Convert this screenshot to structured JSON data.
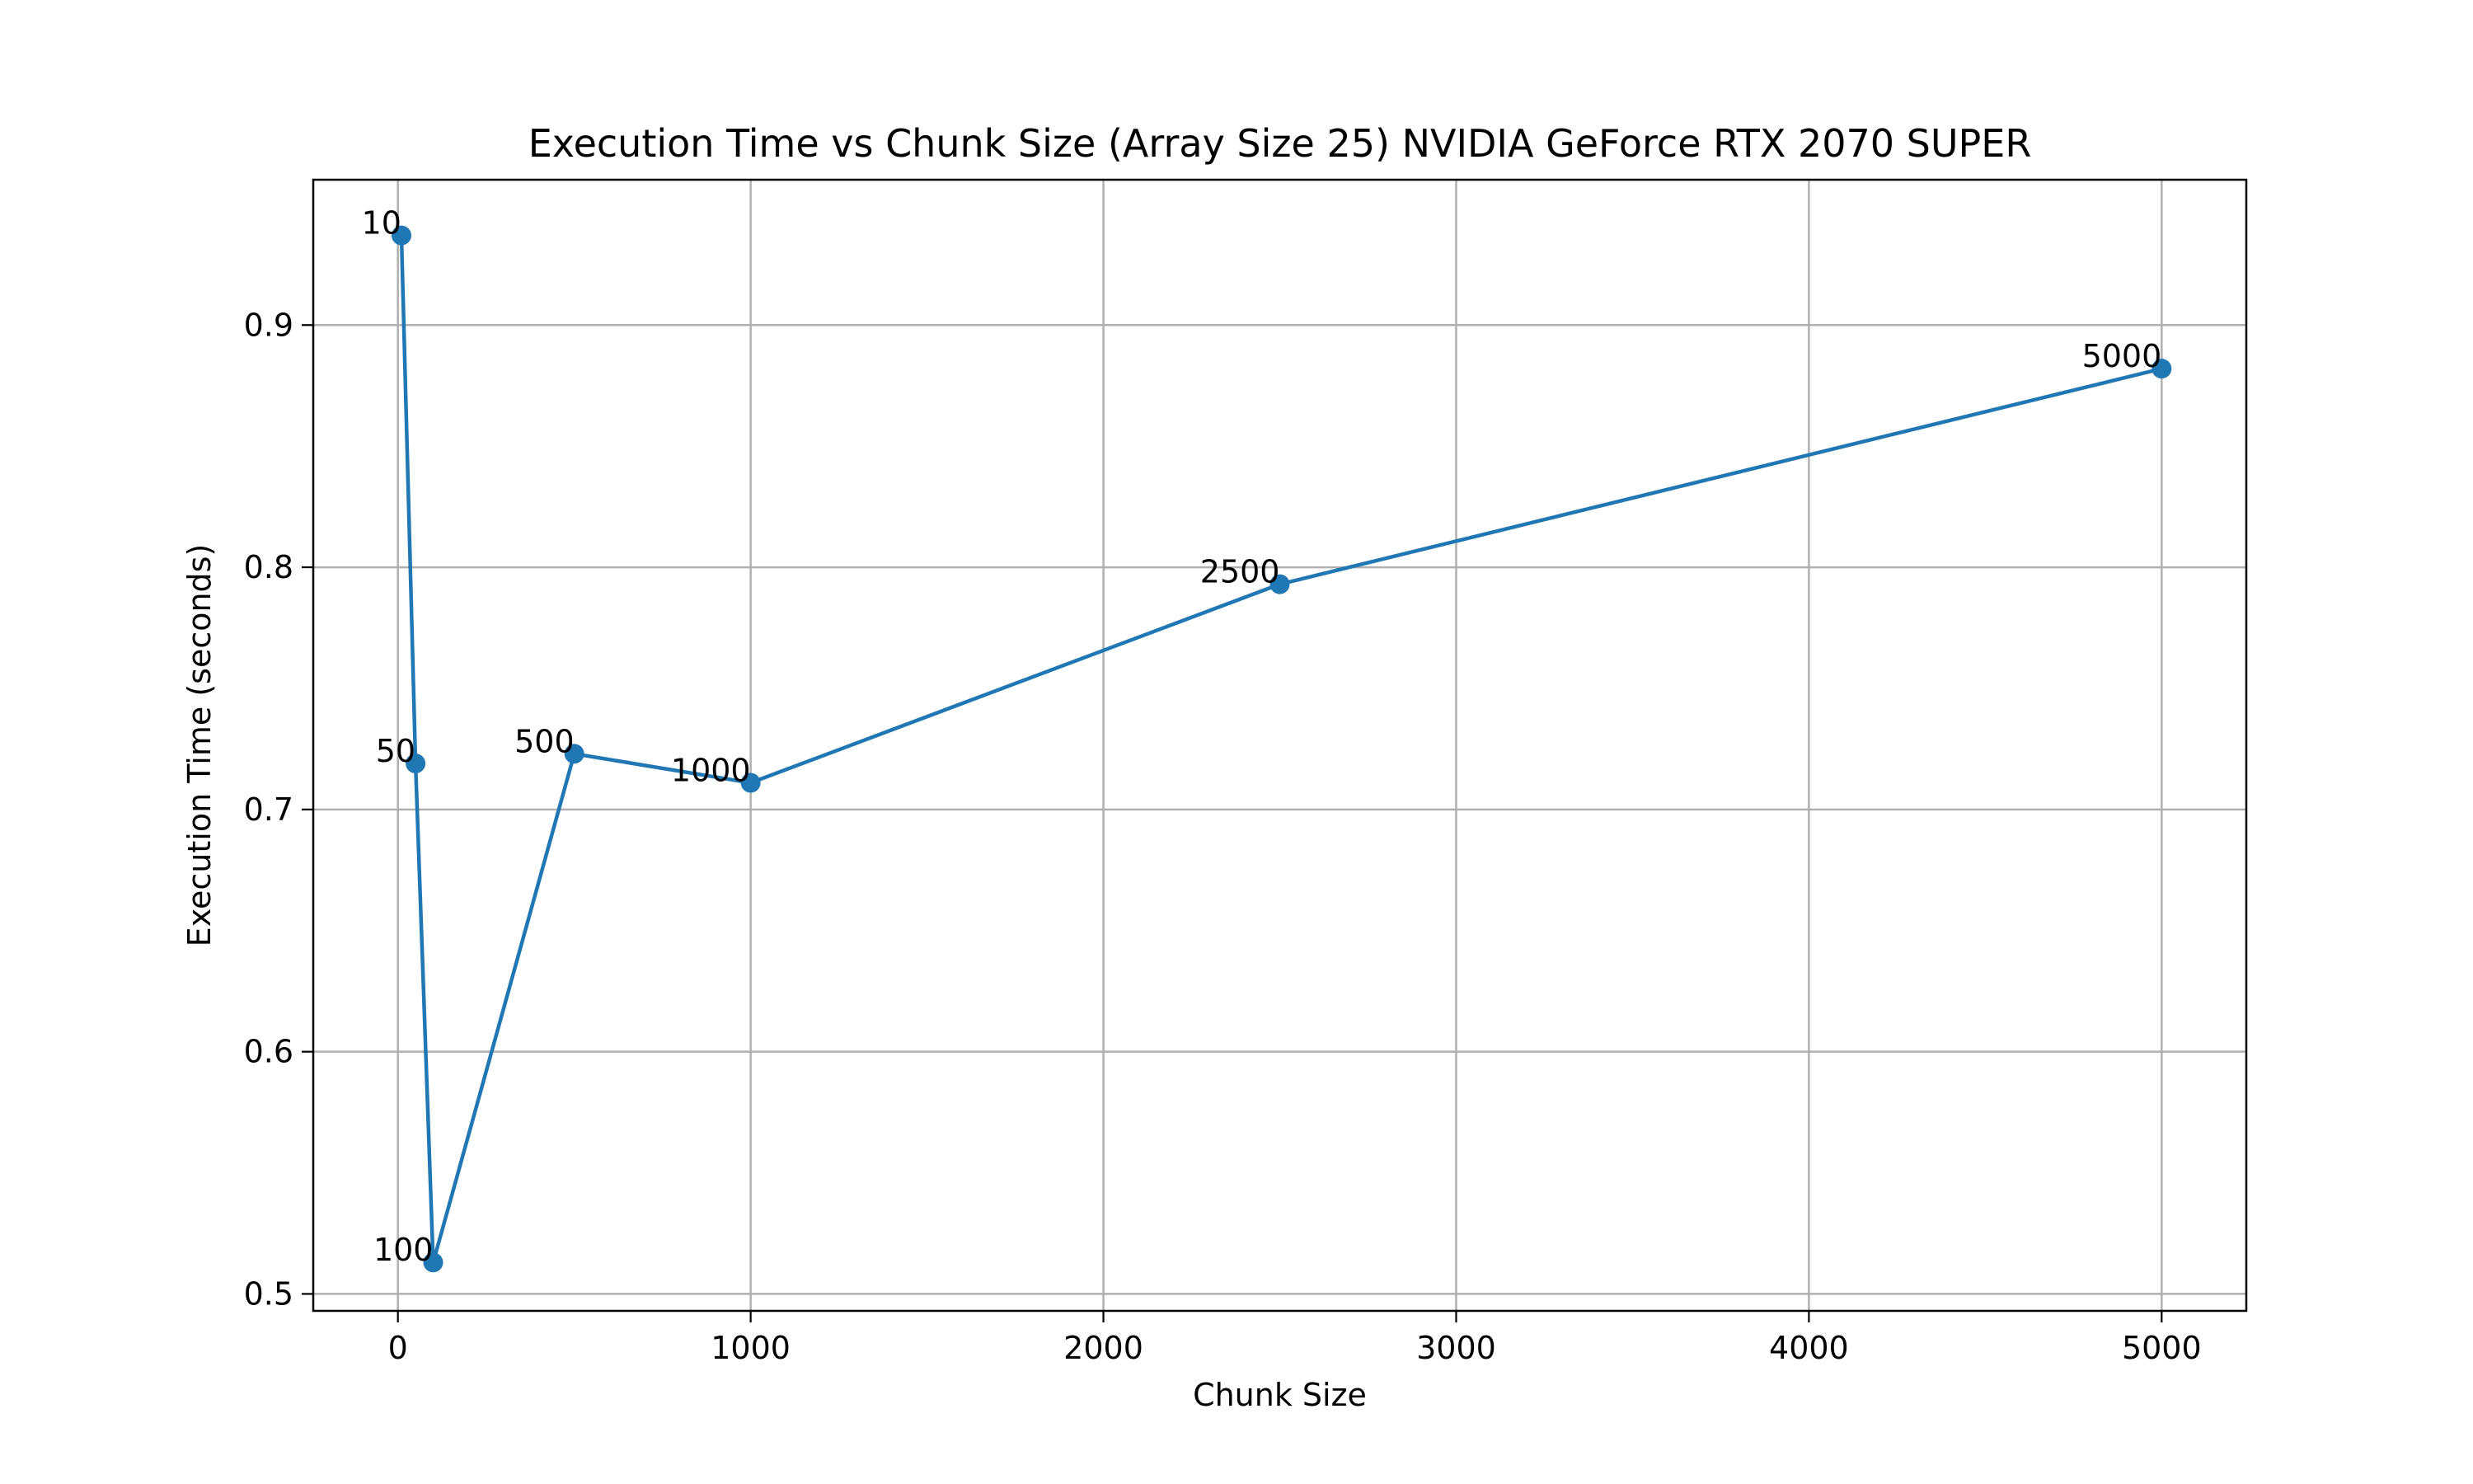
{
  "chart_data": {
    "type": "line",
    "title": "Execution Time vs Chunk Size (Array Size 25) NVIDIA GeForce RTX 2070 SUPER",
    "xlabel": "Chunk Size",
    "ylabel": "Execution Time (seconds)",
    "xlim": [
      -240,
      5240
    ],
    "ylim": [
      0.493,
      0.96
    ],
    "xticks": [
      0,
      1000,
      2000,
      3000,
      4000,
      5000
    ],
    "yticks": [
      0.5,
      0.6,
      0.7,
      0.8,
      0.9
    ],
    "xtick_labels": [
      "0",
      "1000",
      "2000",
      "3000",
      "4000",
      "5000"
    ],
    "ytick_labels": [
      "0.5",
      "0.6",
      "0.7",
      "0.8",
      "0.9"
    ],
    "grid": true,
    "series": [
      {
        "color": "#1f77b4",
        "marker": "circle",
        "points": [
          {
            "x": 10,
            "y": 0.937,
            "label": "10"
          },
          {
            "x": 50,
            "y": 0.719,
            "label": "50"
          },
          {
            "x": 100,
            "y": 0.513,
            "label": "100"
          },
          {
            "x": 500,
            "y": 0.723,
            "label": "500"
          },
          {
            "x": 1000,
            "y": 0.711,
            "label": "1000"
          },
          {
            "x": 2500,
            "y": 0.793,
            "label": "2500"
          },
          {
            "x": 5000,
            "y": 0.882,
            "label": "5000"
          }
        ]
      }
    ]
  }
}
